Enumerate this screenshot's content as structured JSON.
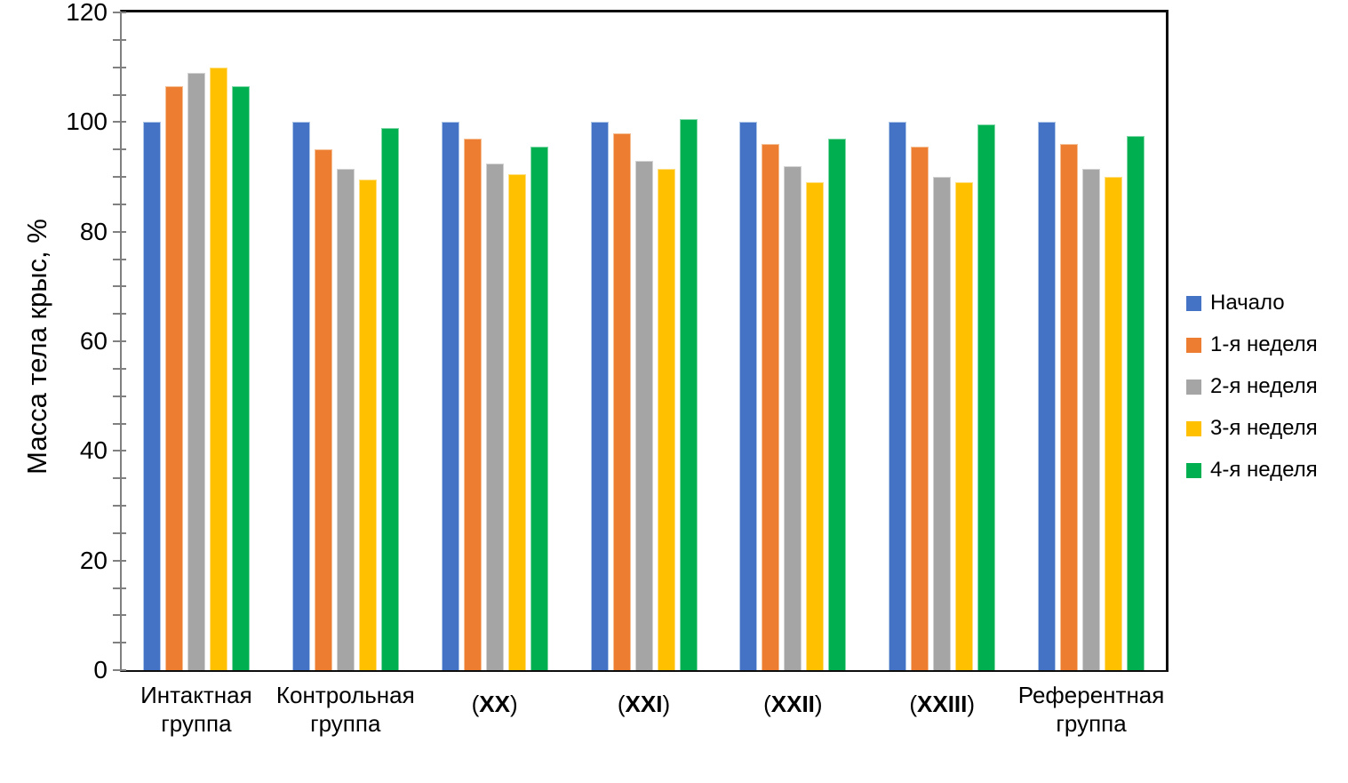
{
  "chart_data": {
    "type": "bar",
    "title": "",
    "xlabel": "",
    "ylabel": "Масса тела крыс, %",
    "ylim": [
      0,
      120
    ],
    "y_major_step": 20,
    "y_minor_step": 5,
    "grid": false,
    "legend_position": "right",
    "categories": [
      "Интактная группа",
      "Контрольная группа",
      "(XX)",
      "(XXI)",
      "(XXII)",
      "(XXIII)",
      "Референтная группа"
    ],
    "series": [
      {
        "name": "Начало",
        "color": "#4472C4",
        "border_color": "#AEC6E8",
        "values": [
          100,
          100,
          100,
          100,
          100,
          100,
          100
        ]
      },
      {
        "name": "1-я неделя",
        "color": "#ED7D31",
        "border_color": "#F5BE93",
        "values": [
          106.5,
          95,
          97,
          98,
          96,
          95.5,
          96
        ]
      },
      {
        "name": "2-я неделя",
        "color": "#A5A5A5",
        "border_color": "#D2D2D2",
        "values": [
          109,
          91.5,
          92.5,
          93,
          92,
          90,
          91.5
        ]
      },
      {
        "name": "3-я неделя",
        "color": "#FFC000",
        "border_color": "#FFDF80",
        "values": [
          110,
          89.5,
          90.5,
          91.5,
          89,
          89,
          90
        ]
      },
      {
        "name": "4-я неделя",
        "color": "#00B050",
        "border_color": "#80D8A8",
        "values": [
          106.5,
          99,
          95.5,
          100.5,
          97,
          99.5,
          97.5
        ]
      }
    ]
  },
  "yaxis": {
    "tick_labels": [
      "0",
      "20",
      "40",
      "60",
      "80",
      "100",
      "120"
    ]
  },
  "xaxis_display": [
    {
      "line1": "Интактная",
      "line2": "группа"
    },
    {
      "line1": "Контрольная",
      "line2": "группа"
    },
    {
      "pre": "(",
      "bold": "XX",
      "post": ")"
    },
    {
      "pre": "(",
      "bold": "XXI",
      "post": ")"
    },
    {
      "pre": "(",
      "bold": "XXII",
      "post": ")"
    },
    {
      "pre": "(",
      "bold": "XXIII",
      "post": ")"
    },
    {
      "line1": "Референтная",
      "line2": "группа"
    }
  ]
}
